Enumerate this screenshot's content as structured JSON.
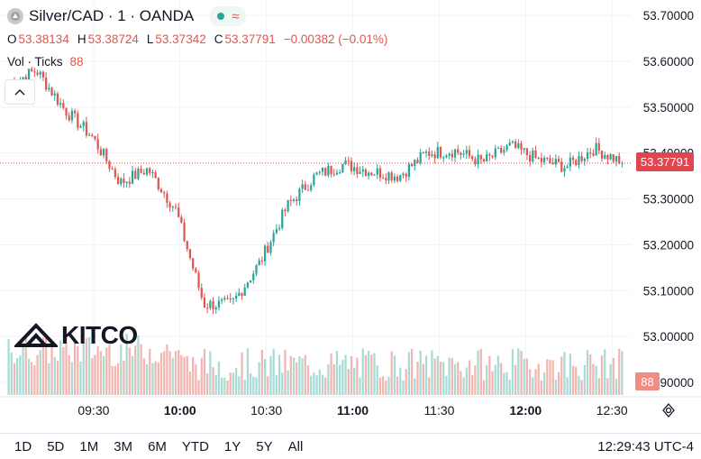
{
  "header": {
    "title": "Silver/CAD · 1 · OANDA",
    "ohlc": [
      {
        "key": "O",
        "value": "53.38134"
      },
      {
        "key": "H",
        "value": "53.38724"
      },
      {
        "key": "L",
        "value": "53.37342"
      },
      {
        "key": "C",
        "value": "53.37791"
      }
    ],
    "change": "−0.00382 (−0.01%)",
    "volume_label": "Vol · Ticks",
    "volume_value": "88"
  },
  "watermark": "KITCO",
  "price_tag": "53.37791",
  "volume_tag": "88",
  "time_ranges": [
    "1D",
    "5D",
    "1M",
    "3M",
    "6M",
    "YTD",
    "1Y",
    "5Y",
    "All"
  ],
  "clock": "12:29:43 UTC-4",
  "colors": {
    "up": "#26a69a",
    "down": "#e0564e",
    "grid": "#f0f3fa",
    "price_line": "#e0464f"
  },
  "chart_data": {
    "type": "candlestick",
    "y_ticks": [
      "53.70000",
      "53.60000",
      "53.50000",
      "53.40000",
      "53.30000",
      "53.20000",
      "53.10000",
      "53.00000",
      "52.90000"
    ],
    "ylim": [
      52.88,
      53.72
    ],
    "x_ticks": [
      {
        "label": "09:30",
        "minute": 30,
        "bold": false
      },
      {
        "label": "10:00",
        "minute": 60,
        "bold": true
      },
      {
        "label": "10:30",
        "minute": 90,
        "bold": false
      },
      {
        "label": "11:00",
        "minute": 120,
        "bold": true
      },
      {
        "label": "11:30",
        "minute": 150,
        "bold": false
      },
      {
        "label": "12:00",
        "minute": 180,
        "bold": true
      },
      {
        "label": "12:30",
        "minute": 210,
        "bold": false
      }
    ],
    "xlim": [
      0,
      214
    ],
    "last_price": 53.37791,
    "ohlc_anchors": [
      [
        53.52,
        53.58
      ],
      [
        53.56,
        53.6
      ],
      [
        53.47,
        53.52
      ],
      [
        53.4,
        53.47
      ],
      [
        53.29,
        53.38
      ],
      [
        53.37,
        53.36
      ],
      [
        53.3,
        53.25
      ],
      [
        53.1,
        53.04
      ],
      [
        53.06,
        53.08
      ],
      [
        53.13,
        53.19
      ],
      [
        53.26,
        53.31
      ],
      [
        53.34,
        53.36
      ],
      [
        53.32,
        53.43
      ],
      [
        53.37,
        53.35
      ],
      [
        53.31,
        53.39
      ],
      [
        53.36,
        53.44
      ],
      [
        53.4,
        53.41
      ],
      [
        53.37,
        53.39
      ],
      [
        53.42,
        53.41
      ],
      [
        53.4,
        53.37
      ],
      [
        53.32,
        53.42
      ],
      [
        53.44,
        53.38
      ],
      [
        53.38,
        53.38
      ]
    ],
    "volume_range": [
      0,
      100
    ],
    "last_volume": 88
  }
}
